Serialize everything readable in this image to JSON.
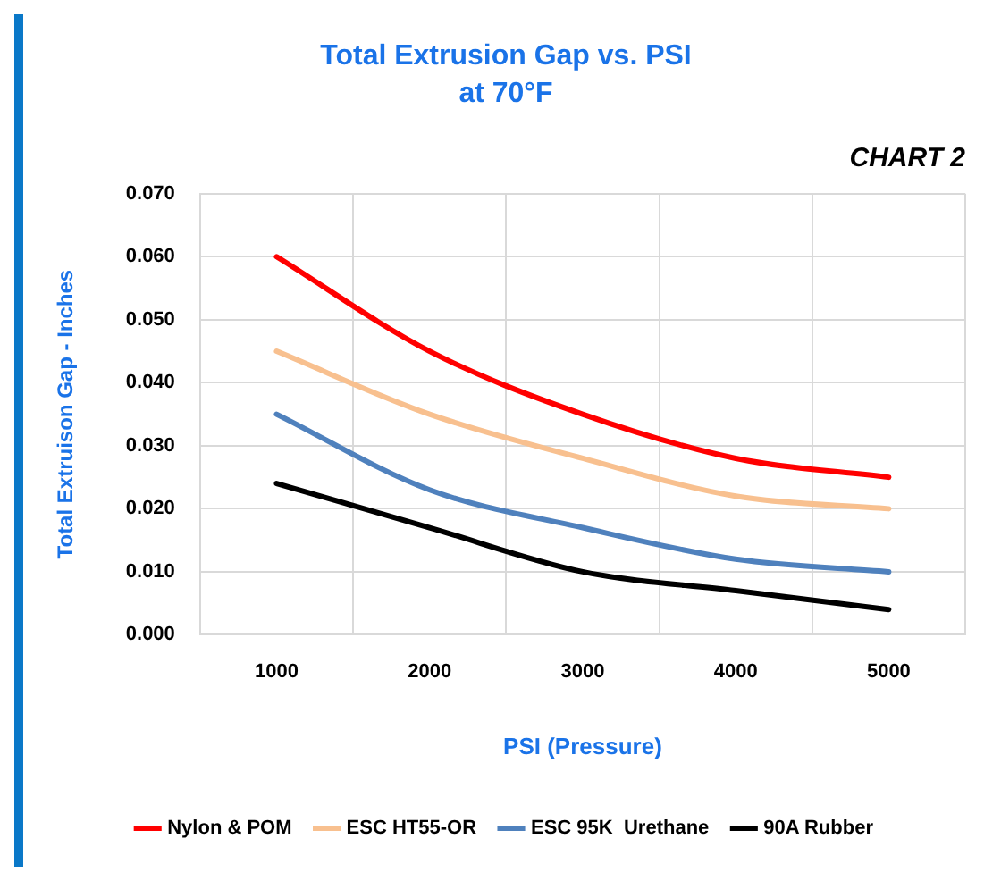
{
  "chart_data": {
    "type": "line",
    "title": "Total Extrusion Gap vs. PSI",
    "subtitle": "at 70°F",
    "annotations": [
      "CHART 2"
    ],
    "xlabel": "PSI (Pressure)",
    "ylabel": "Total Extruison Gap - Inches",
    "categories": [
      "1000",
      "2000",
      "3000",
      "4000",
      "5000"
    ],
    "series": [
      {
        "name": "Nylon & POM",
        "color": "#ff0000",
        "values": [
          0.06,
          0.045,
          0.035,
          0.028,
          0.025
        ]
      },
      {
        "name": "ESC HT55-OR",
        "color": "#f8c08f",
        "values": [
          0.045,
          0.035,
          0.028,
          0.022,
          0.02
        ]
      },
      {
        "name": "ESC 95K  Urethane",
        "color": "#4f81bd",
        "values": [
          0.035,
          0.023,
          0.017,
          0.012,
          0.01
        ]
      },
      {
        "name": "90A Rubber",
        "color": "#000000",
        "values": [
          0.024,
          0.017,
          0.01,
          0.007,
          0.004
        ]
      }
    ],
    "ylim": [
      0,
      0.07
    ],
    "yticks": [
      {
        "value": 0,
        "label": "0.000"
      },
      {
        "value": 0.01,
        "label": "0.010"
      },
      {
        "value": 0.02,
        "label": "0.020"
      },
      {
        "value": 0.03,
        "label": "0.030"
      },
      {
        "value": 0.04,
        "label": "0.040"
      },
      {
        "value": 0.05,
        "label": "0.050"
      },
      {
        "value": 0.06,
        "label": "0.060"
      },
      {
        "value": 0.07,
        "label": "0.070"
      }
    ],
    "grid": true,
    "legend": "bottom",
    "marker": "none",
    "line_style": "solid"
  }
}
